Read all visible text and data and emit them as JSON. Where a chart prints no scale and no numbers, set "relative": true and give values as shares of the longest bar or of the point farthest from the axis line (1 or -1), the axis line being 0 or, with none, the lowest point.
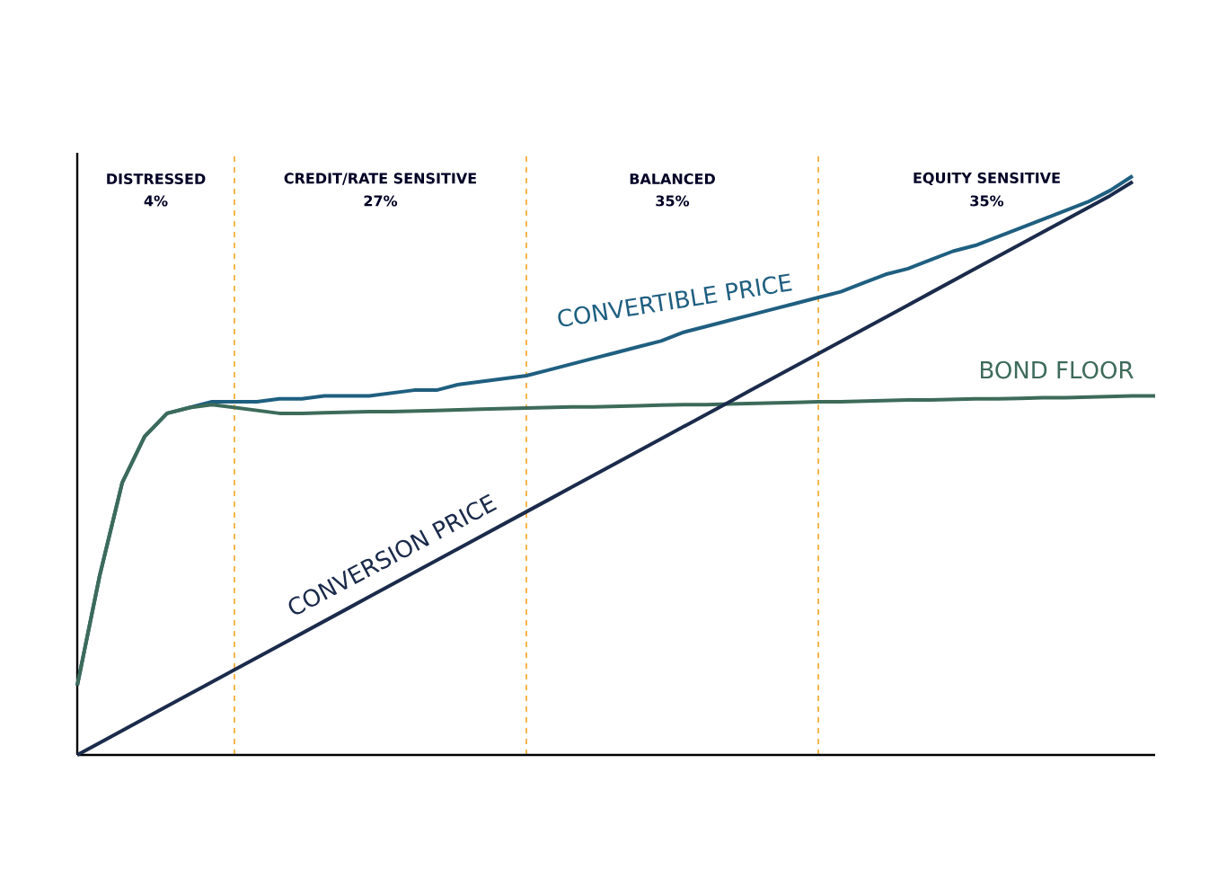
{
  "chart_data": {
    "type": "line",
    "relative": true,
    "grid": "x",
    "marker": "none",
    "line_style": "solid",
    "categories": [
      null,
      null,
      null,
      null,
      null,
      null,
      null,
      null,
      null,
      null,
      null,
      null,
      null,
      null,
      null,
      null,
      null,
      null,
      null,
      null,
      null,
      null,
      null,
      null,
      null,
      null,
      null,
      null,
      null,
      null,
      null,
      null,
      null,
      null,
      null,
      null,
      null,
      null,
      null,
      null,
      null,
      null,
      null,
      null,
      null,
      null,
      null,
      null,
      null
    ],
    "series": [
      {
        "name": "CONVERTIBLE PRICE",
        "color": "#1f5f80",
        "values": [
          0.12,
          0.31,
          0.47,
          0.55,
          0.59,
          0.6,
          0.61,
          0.61,
          0.61,
          0.615,
          0.615,
          0.62,
          0.62,
          0.62,
          0.625,
          0.63,
          0.63,
          0.64,
          0.645,
          0.65,
          0.655,
          0.665,
          0.675,
          0.685,
          0.695,
          0.705,
          0.715,
          0.73,
          0.74,
          0.75,
          0.76,
          0.77,
          0.78,
          0.79,
          0.8,
          0.815,
          0.83,
          0.84,
          0.855,
          0.87,
          0.88,
          0.895,
          0.91,
          0.925,
          0.94,
          0.955,
          0.975,
          1.0,
          null
        ]
      },
      {
        "name": "BOND FLOOR",
        "color": "#3d6b5a",
        "values": [
          0.12,
          0.31,
          0.47,
          0.55,
          0.59,
          0.6,
          0.605,
          0.6,
          0.595,
          0.59,
          0.59,
          0.591,
          0.592,
          0.593,
          0.593,
          0.594,
          0.595,
          0.596,
          0.597,
          0.598,
          0.599,
          0.6,
          0.601,
          0.601,
          0.602,
          0.603,
          0.604,
          0.605,
          0.605,
          0.606,
          0.607,
          0.608,
          0.609,
          0.61,
          0.61,
          0.611,
          0.612,
          0.613,
          0.613,
          0.614,
          0.615,
          0.615,
          0.616,
          0.617,
          0.617,
          0.618,
          0.619,
          0.62,
          0.62
        ]
      },
      {
        "name": "CONVERSION PRICE",
        "color": "#1b2b4b",
        "values": [
          0.0,
          0.021,
          0.042,
          0.063,
          0.084,
          0.105,
          0.126,
          0.147,
          0.168,
          0.189,
          0.21,
          0.231,
          0.252,
          0.273,
          0.294,
          0.315,
          0.336,
          0.357,
          0.378,
          0.399,
          0.42,
          0.441,
          0.462,
          0.483,
          0.504,
          0.525,
          0.546,
          0.567,
          0.588,
          0.609,
          0.63,
          0.651,
          0.672,
          0.693,
          0.714,
          0.735,
          0.756,
          0.777,
          0.798,
          0.819,
          0.84,
          0.861,
          0.882,
          0.903,
          0.924,
          0.945,
          0.966,
          0.99,
          null
        ]
      }
    ],
    "annotations": [
      "DISTRESSED",
      "4%",
      "CREDIT/RATE SENSITIVE",
      "27%",
      "BALANCED",
      "35%",
      "EQUITY SENSITIVE",
      "35%"
    ]
  }
}
